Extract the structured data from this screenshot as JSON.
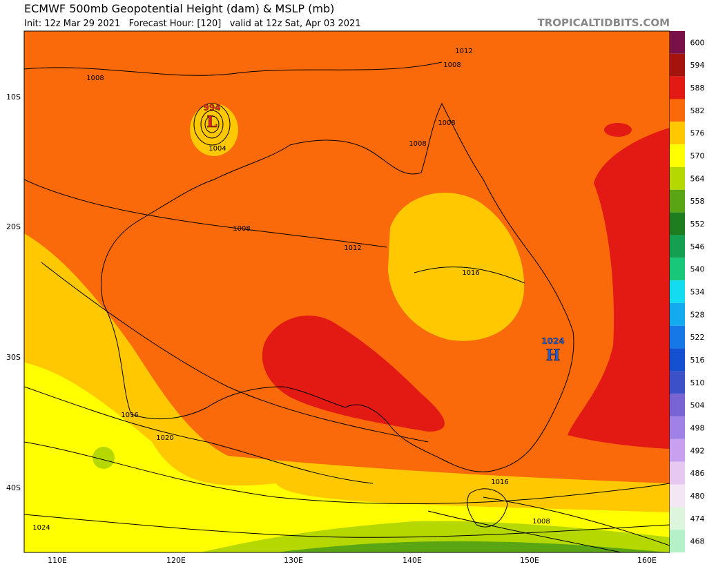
{
  "header": {
    "title": "ECMWF 500mb Geopotential Height (dam) & MSLP (mb)",
    "subtitle": "Init: 12z Mar 29 2021   Forecast Hour: [120]   valid at 12z Sat, Apr 03 2021",
    "site": "TROPICALTIDBITS.COM"
  },
  "map": {
    "lat_labels": [
      "10S",
      "20S",
      "30S",
      "40S"
    ],
    "lon_labels": [
      "110E",
      "120E",
      "130E",
      "140E",
      "150E",
      "160E"
    ],
    "pressure_labels": [
      "1008",
      "1012",
      "1008",
      "1008",
      "1008",
      "1004",
      "1008",
      "1012",
      "1016",
      "1016",
      "1020",
      "1024",
      "1016",
      "1008"
    ],
    "centers": [
      {
        "symbol": "L",
        "value": "994",
        "color": "#e0201a"
      },
      {
        "symbol": "H",
        "value": "1024",
        "color": "#2a5cc8"
      }
    ]
  },
  "colorbar": [
    {
      "label": "600",
      "color": "#7a1048"
    },
    {
      "label": "594",
      "color": "#a5140c"
    },
    {
      "label": "588",
      "color": "#e31a14"
    },
    {
      "label": "582",
      "color": "#fa6a0a"
    },
    {
      "label": "576",
      "color": "#ffc800"
    },
    {
      "label": "570",
      "color": "#ffff00"
    },
    {
      "label": "564",
      "color": "#b4d800"
    },
    {
      "label": "558",
      "color": "#5aa514"
    },
    {
      "label": "552",
      "color": "#1e7d1e"
    },
    {
      "label": "546",
      "color": "#14a050"
    },
    {
      "label": "540",
      "color": "#18c878"
    },
    {
      "label": "534",
      "color": "#14dcf0"
    },
    {
      "label": "528",
      "color": "#14aaf0"
    },
    {
      "label": "522",
      "color": "#1478e6"
    },
    {
      "label": "516",
      "color": "#1450d2"
    },
    {
      "label": "510",
      "color": "#3c50c8"
    },
    {
      "label": "504",
      "color": "#7864d2"
    },
    {
      "label": "498",
      "color": "#a082e6"
    },
    {
      "label": "492",
      "color": "#c8a0f0"
    },
    {
      "label": "486",
      "color": "#e6c8f0"
    },
    {
      "label": "480",
      "color": "#f5e6f5"
    },
    {
      "label": "474",
      "color": "#dcf5dc"
    },
    {
      "label": "468",
      "color": "#b4f0c8"
    }
  ]
}
